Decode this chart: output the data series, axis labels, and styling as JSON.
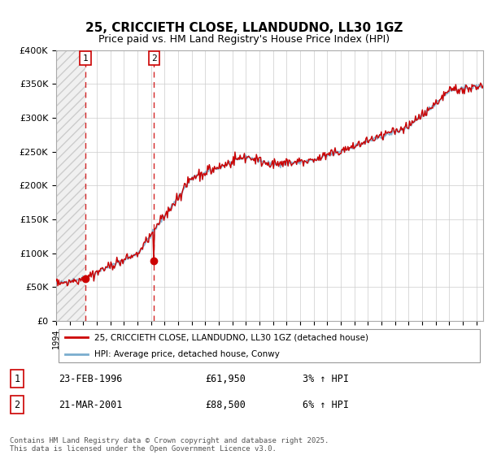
{
  "title": "25, CRICCIETH CLOSE, LLANDUDNO, LL30 1GZ",
  "subtitle": "Price paid vs. HM Land Registry's House Price Index (HPI)",
  "legend_line1": "25, CRICCIETH CLOSE, LLANDUDNO, LL30 1GZ (detached house)",
  "legend_line2": "HPI: Average price, detached house, Conwy",
  "ylabel_ticks": [
    "£0",
    "£50K",
    "£100K",
    "£150K",
    "£200K",
    "£250K",
    "£300K",
    "£350K",
    "£400K"
  ],
  "ytick_values": [
    0,
    50000,
    100000,
    150000,
    200000,
    250000,
    300000,
    350000,
    400000
  ],
  "xmin": 1994,
  "xmax": 2025.5,
  "ymin": 0,
  "ymax": 400000,
  "sale1_year": 1996.15,
  "sale1_price": 61950,
  "sale1_label": "1",
  "sale2_year": 2001.22,
  "sale2_price": 88500,
  "sale2_label": "2",
  "red_color": "#cc0000",
  "blue_color": "#7aadce",
  "footer": "Contains HM Land Registry data © Crown copyright and database right 2025.\nThis data is licensed under the Open Government Licence v3.0.",
  "table_rows": [
    [
      "1",
      "23-FEB-1996",
      "£61,950",
      "3% ↑ HPI"
    ],
    [
      "2",
      "21-MAR-2001",
      "£88,500",
      "6% ↑ HPI"
    ]
  ]
}
